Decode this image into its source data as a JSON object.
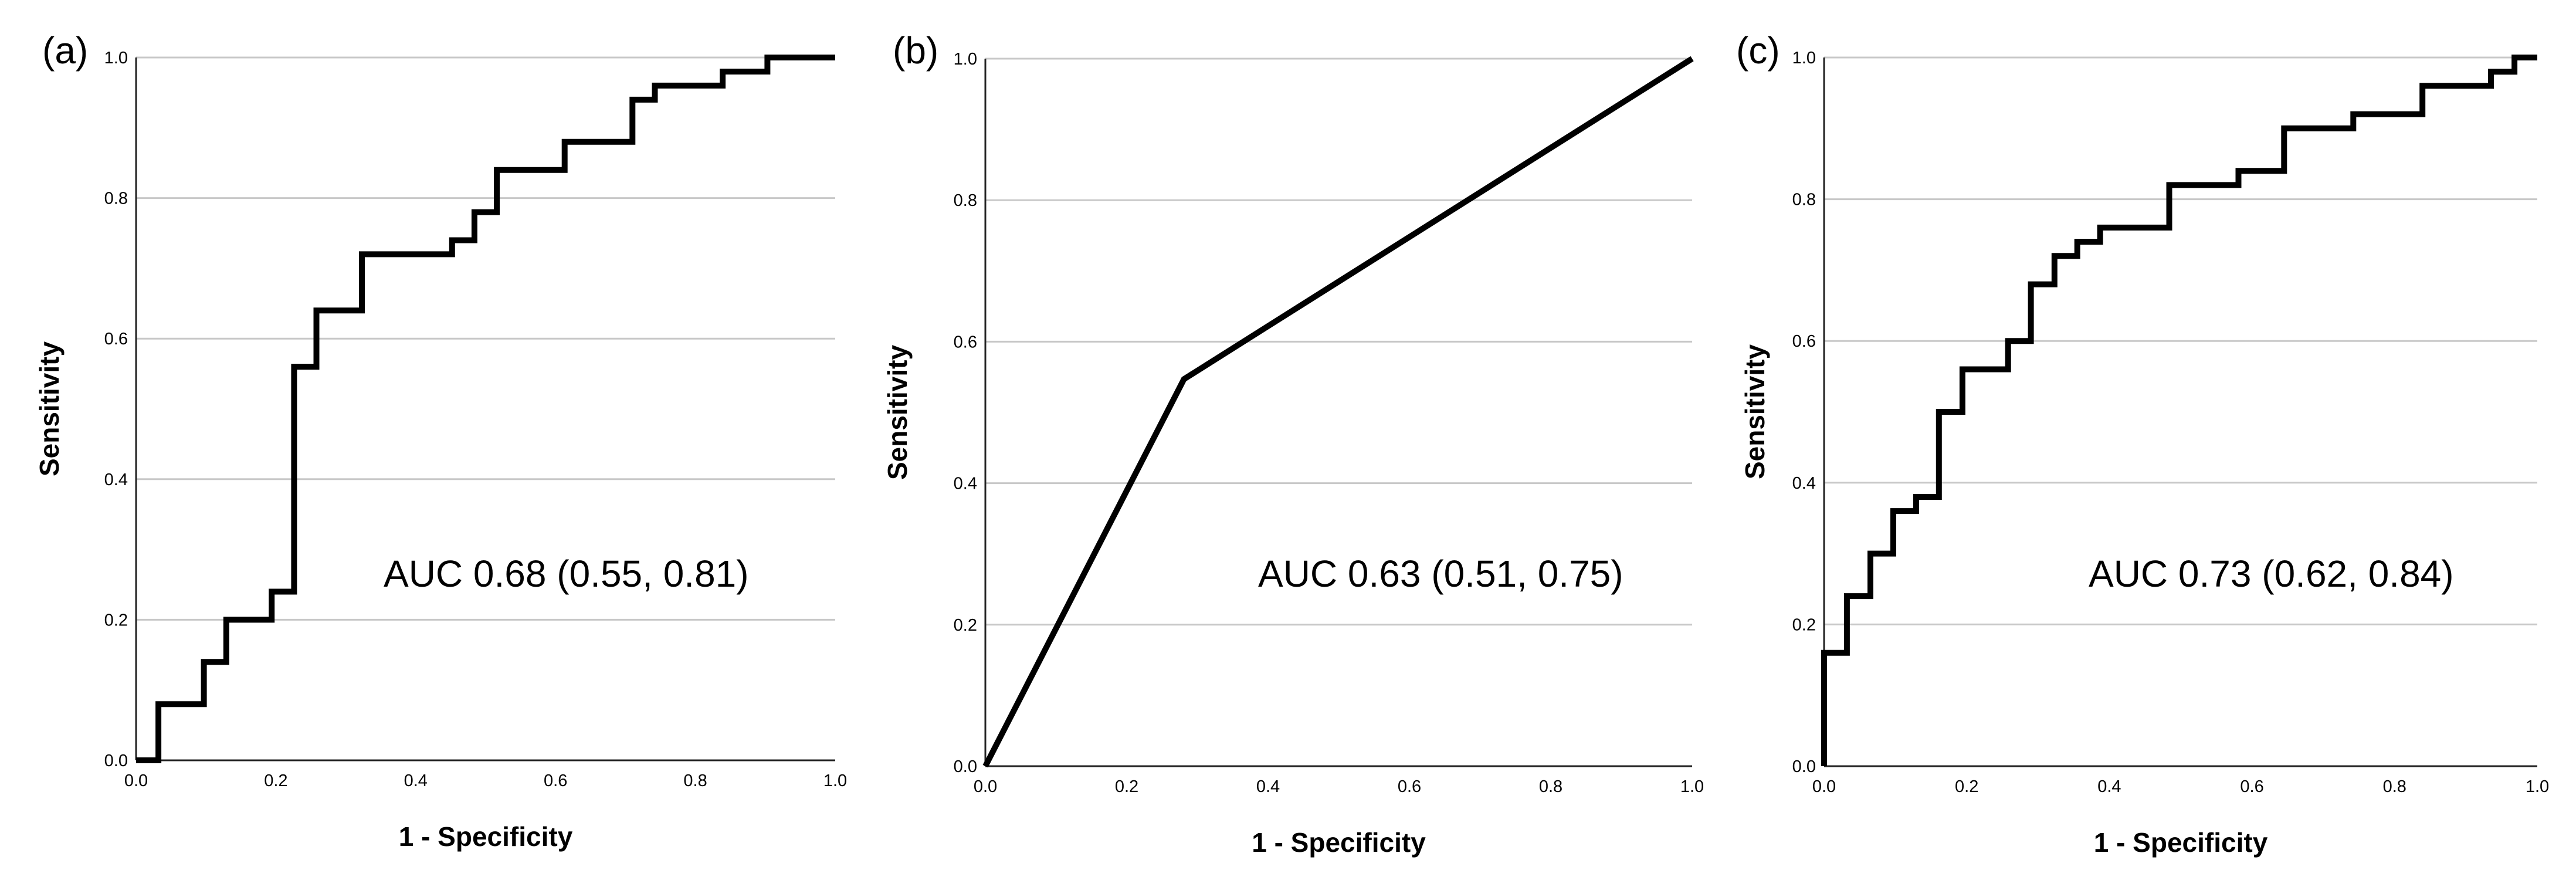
{
  "chart_data": [
    {
      "type": "line",
      "panel_label": "(a)",
      "xlabel": "1 - Specificity",
      "ylabel": "Sensitivity",
      "xlim": [
        0,
        1
      ],
      "ylim": [
        0,
        1
      ],
      "x_ticks": [
        "0.0",
        "0.2",
        "0.4",
        "0.6",
        "0.8",
        "1.0"
      ],
      "y_ticks": [
        "0.0",
        "0.2",
        "0.4",
        "0.6",
        "0.8",
        "1.0"
      ],
      "grid": "horizontal",
      "annotation": "AUC 0.68 (0.55, 0.81)",
      "series": [
        {
          "line_style": "step",
          "x": [
            0.0,
            0.032,
            0.032,
            0.097,
            0.097,
            0.129,
            0.129,
            0.194,
            0.194,
            0.226,
            0.226,
            0.258,
            0.258,
            0.323,
            0.323,
            0.452,
            0.452,
            0.484,
            0.484,
            0.516,
            0.516,
            0.613,
            0.613,
            0.71,
            0.71,
            0.742,
            0.742,
            0.839,
            0.839,
            0.903,
            0.903,
            1.0
          ],
          "y": [
            0.0,
            0.0,
            0.08,
            0.08,
            0.14,
            0.14,
            0.2,
            0.2,
            0.24,
            0.24,
            0.56,
            0.56,
            0.64,
            0.64,
            0.72,
            0.72,
            0.74,
            0.74,
            0.78,
            0.78,
            0.84,
            0.84,
            0.88,
            0.88,
            0.94,
            0.94,
            0.96,
            0.96,
            0.98,
            0.98,
            1.0,
            1.0
          ]
        }
      ]
    },
    {
      "type": "line",
      "panel_label": "(b)",
      "xlabel": "1 - Specificity",
      "ylabel": "Sensitivity",
      "xlim": [
        0,
        1
      ],
      "ylim": [
        0,
        1
      ],
      "x_ticks": [
        "0.0",
        "0.2",
        "0.4",
        "0.6",
        "0.8",
        "1.0"
      ],
      "y_ticks": [
        "0.0",
        "0.2",
        "0.4",
        "0.6",
        "0.8",
        "1.0"
      ],
      "grid": "horizontal",
      "annotation": "AUC 0.63 (0.51, 0.75)",
      "series": [
        {
          "line_style": "straight",
          "x": [
            0.0,
            0.281,
            1.0
          ],
          "y": [
            0.0,
            0.547,
            1.0
          ]
        }
      ]
    },
    {
      "type": "line",
      "panel_label": "(c)",
      "xlabel": "1 - Specificity",
      "ylabel": "Sensitivity",
      "xlim": [
        0,
        1
      ],
      "ylim": [
        0,
        1
      ],
      "x_ticks": [
        "0.0",
        "0.2",
        "0.4",
        "0.6",
        "0.8",
        "1.0"
      ],
      "y_ticks": [
        "0.0",
        "0.2",
        "0.4",
        "0.6",
        "0.8",
        "1.0"
      ],
      "grid": "horizontal",
      "annotation": "AUC 0.73 (0.62, 0.84)",
      "series": [
        {
          "line_style": "step",
          "x": [
            0.0,
            0.0,
            0.032,
            0.032,
            0.065,
            0.065,
            0.097,
            0.097,
            0.129,
            0.129,
            0.161,
            0.161,
            0.194,
            0.194,
            0.258,
            0.258,
            0.29,
            0.29,
            0.323,
            0.323,
            0.355,
            0.355,
            0.387,
            0.387,
            0.484,
            0.484,
            0.581,
            0.581,
            0.645,
            0.645,
            0.742,
            0.742,
            0.839,
            0.839,
            0.935,
            0.935,
            0.968,
            0.968,
            1.0
          ],
          "y": [
            0.0,
            0.16,
            0.16,
            0.24,
            0.24,
            0.3,
            0.3,
            0.36,
            0.36,
            0.38,
            0.38,
            0.5,
            0.5,
            0.56,
            0.56,
            0.6,
            0.6,
            0.68,
            0.68,
            0.72,
            0.72,
            0.74,
            0.74,
            0.76,
            0.76,
            0.82,
            0.82,
            0.84,
            0.84,
            0.9,
            0.9,
            0.92,
            0.92,
            0.96,
            0.96,
            0.98,
            0.98,
            1.0,
            1.0
          ]
        }
      ]
    }
  ]
}
